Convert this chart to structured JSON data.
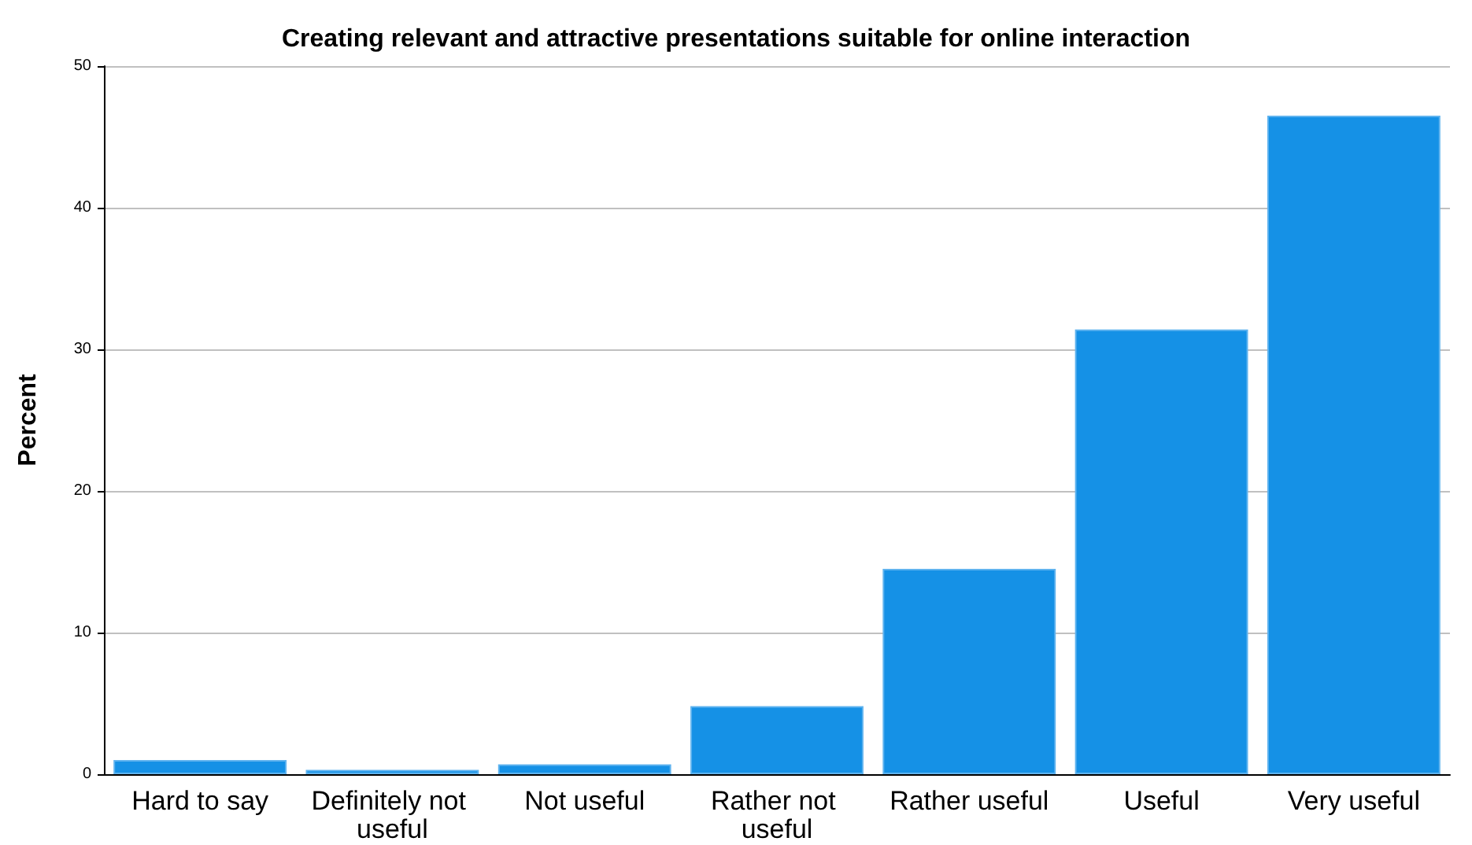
{
  "chart_data": {
    "type": "bar",
    "title": "Creating relevant and attractive presentations suitable for online interaction",
    "ylabel": "Percent",
    "categories": [
      "Hard to say",
      "Definitely not useful",
      "Not useful",
      "Rather not useful",
      "Rather useful",
      "Useful",
      "Very useful"
    ],
    "values": [
      1.0,
      0.3,
      0.7,
      4.8,
      14.5,
      31.4,
      46.5
    ],
    "color": "#1591e6",
    "ylim": [
      0,
      50
    ],
    "yticks": [
      0,
      10,
      20,
      30,
      40,
      50
    ],
    "grid": "y"
  }
}
